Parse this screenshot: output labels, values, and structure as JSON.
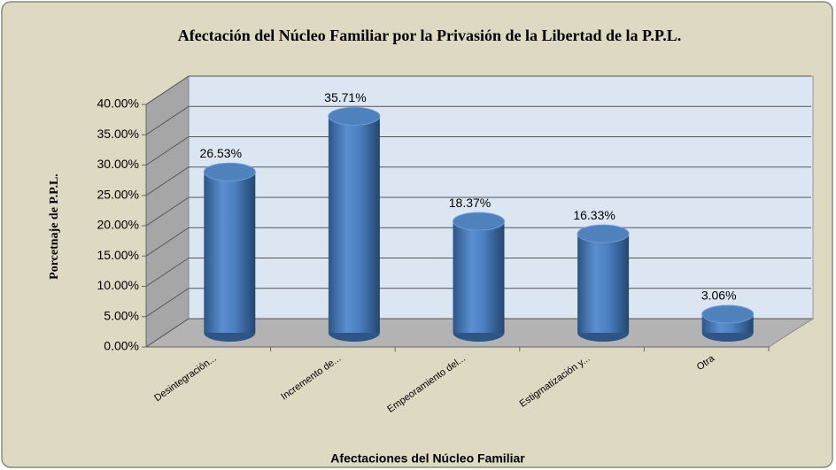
{
  "chart_data": {
    "type": "bar",
    "title": "Afectación del Núcleo Familiar por la Privasión de la Libertad de la P.P.L.",
    "y_label": "Porcetnaje de P.P.L.",
    "x_label": "Afectaciones  del Núcleo Familiar",
    "categories": [
      "Desintegración...",
      "Incremento de...",
      "Empeoramiento del...",
      "Estigmatización y...",
      "Otra"
    ],
    "values": [
      26.53,
      35.71,
      18.37,
      16.33,
      3.06
    ],
    "value_labels": [
      "26.53%",
      "35.71%",
      "18.37%",
      "16.33%",
      "3.06%"
    ],
    "color": "#4f81bd",
    "ylim": [
      0,
      40
    ],
    "yticks": [
      {
        "value": 0,
        "label": "0.00%"
      },
      {
        "value": 5,
        "label": "5.00%"
      },
      {
        "value": 10,
        "label": "10.00%"
      },
      {
        "value": 15,
        "label": "15.00%"
      },
      {
        "value": 20,
        "label": "20.00%"
      },
      {
        "value": 25,
        "label": "25.00%"
      },
      {
        "value": 30,
        "label": "30.00%"
      },
      {
        "value": 35,
        "label": "35.00%"
      },
      {
        "value": 40,
        "label": "40.00%"
      }
    ],
    "grid": true
  }
}
